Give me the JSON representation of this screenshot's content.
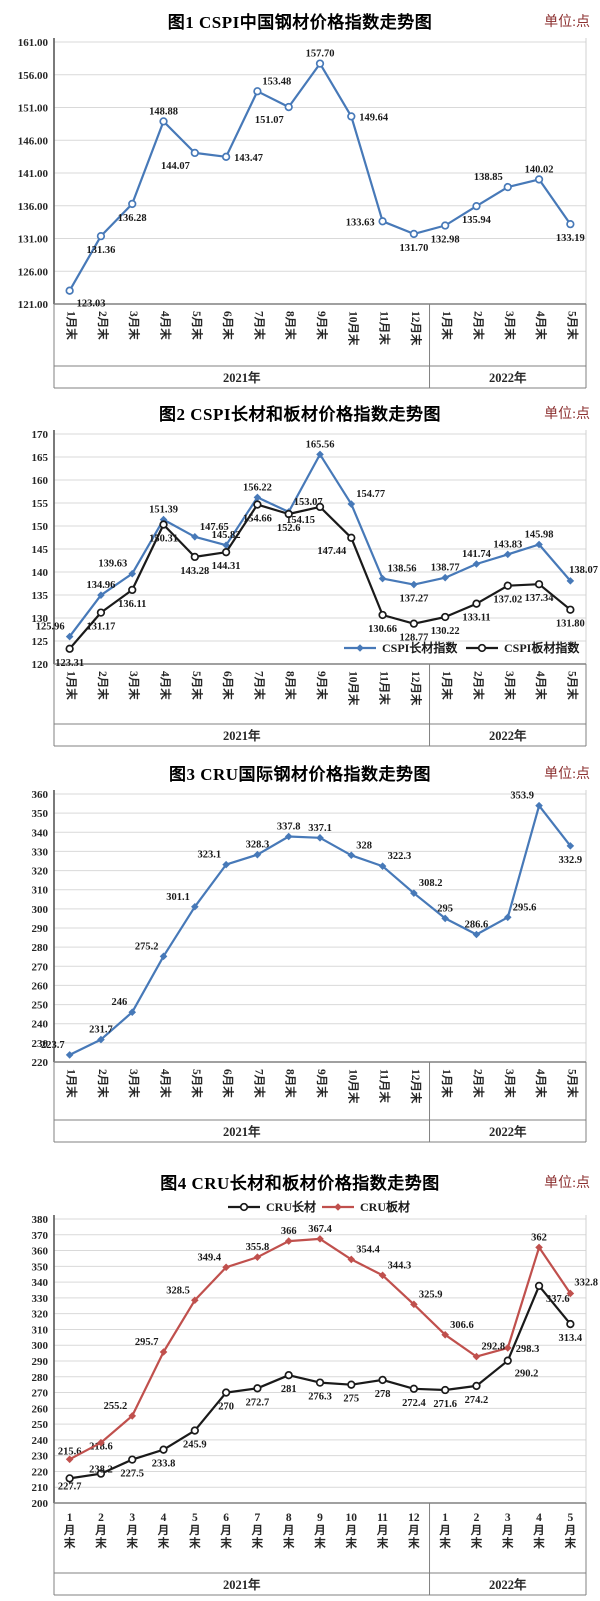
{
  "page": {
    "background": "#ffffff"
  },
  "colors": {
    "cspi_blue": "#4779b8",
    "series_black": "#1a1a1a",
    "cru_red": "#c0504d",
    "gridline": "#d9d9d9",
    "axis": "#808080",
    "tick_text": "#262626",
    "unit_text": "#8c3030"
  },
  "chart_data": [
    {
      "type": "line",
      "title": "图1 CSPI中国钢材价格指数走势图",
      "unit_label": "单位:点",
      "x_categories": [
        "1月末",
        "2月末",
        "3月末",
        "4月末",
        "5月末",
        "6月末",
        "7月末",
        "8月末",
        "9月末",
        "10月末",
        "11月末",
        "12月末",
        "1月末",
        "2月末",
        "3月末",
        "4月末",
        "5月末"
      ],
      "x_group_labels": [
        {
          "label": "2021年",
          "count": 12
        },
        {
          "label": "2022年",
          "count": 5
        }
      ],
      "ylim": [
        121,
        161
      ],
      "ystep": 5,
      "ytick_decimals": 2,
      "grid": true,
      "legend": null,
      "series": [
        {
          "name": null,
          "color": "#4779b8",
          "marker": "open-circle",
          "values": [
            123.03,
            131.36,
            136.28,
            148.88,
            144.07,
            143.47,
            153.48,
            151.07,
            157.7,
            149.64,
            133.63,
            131.7,
            132.98,
            135.94,
            138.85,
            140.02,
            133.19
          ],
          "labels": [
            "123.03",
            "131.36",
            "136.28",
            "148.88",
            "144.07",
            "143.47",
            "153.48",
            "151.07",
            "157.70",
            "149.64",
            "133.63",
            "131.70",
            "132.98",
            "135.94",
            "138.85",
            "140.02",
            "133.19"
          ],
          "label_sides": [
            "br",
            "b",
            "b",
            "a",
            "bl",
            "r",
            "ar",
            "bl",
            "a",
            "r",
            "l",
            "b",
            "b",
            "b",
            "al",
            "a",
            "b"
          ]
        }
      ]
    },
    {
      "type": "line",
      "title": "图2 CSPI长材和板材价格指数走势图",
      "unit_label": "单位:点",
      "x_categories": [
        "1月末",
        "2月末",
        "3月末",
        "4月末",
        "5月末",
        "6月末",
        "7月末",
        "8月末",
        "9月末",
        "10月末",
        "11月末",
        "12月末",
        "1月末",
        "2月末",
        "3月末",
        "4月末",
        "5月末"
      ],
      "x_group_labels": [
        {
          "label": "2021年",
          "count": 12
        },
        {
          "label": "2022年",
          "count": 5
        }
      ],
      "ylim": [
        120,
        170
      ],
      "ystep": 5,
      "ytick_decimals": 0,
      "grid": true,
      "legend": {
        "position": "bottom-right",
        "entries": [
          "CSPI长材指数",
          "CSPI板材指数"
        ]
      },
      "series": [
        {
          "name": "CSPI长材指数",
          "color": "#4779b8",
          "marker": "diamond",
          "values": [
            125.96,
            134.96,
            139.63,
            151.39,
            147.65,
            145.82,
            156.22,
            153.07,
            165.56,
            154.77,
            138.56,
            137.27,
            138.77,
            141.74,
            143.83,
            145.98,
            138.07
          ],
          "labels": [
            "125.96",
            "134.96",
            "139.63",
            "151.39",
            "147.65",
            "145.82",
            "156.22",
            "153.07",
            "165.56",
            "154.77",
            "138.56",
            "137.27",
            "138.77",
            "141.74",
            "143.83",
            "145.98",
            "138.07"
          ],
          "label_sides": [
            "al",
            "a",
            "al",
            "a",
            "ar",
            "a",
            "a",
            "ar",
            "a",
            "ar",
            "ar",
            "b",
            "a",
            "a",
            "a",
            "a",
            "er"
          ]
        },
        {
          "name": "CSPI板材指数",
          "color": "#1a1a1a",
          "marker": "open-circle",
          "values": [
            123.31,
            131.17,
            136.11,
            150.31,
            143.28,
            144.31,
            154.66,
            152.6,
            154.15,
            147.44,
            130.66,
            128.77,
            130.22,
            133.11,
            137.02,
            137.34,
            131.8
          ],
          "labels": [
            "123.31",
            "131.17",
            "136.11",
            "150.31",
            "143.28",
            "144.31",
            "154.66",
            "152.6",
            "154.15",
            "147.44",
            "130.66",
            "128.77",
            "130.22",
            "133.11",
            "137.02",
            "137.34",
            "131.80"
          ],
          "label_sides": [
            "b",
            "b",
            "b",
            "b",
            "b",
            "b",
            "b",
            "b",
            "bl",
            "bl",
            "b",
            "b",
            "b",
            "b",
            "b",
            "b",
            "b"
          ]
        }
      ]
    },
    {
      "type": "line",
      "title": "图3 CRU国际钢材价格指数走势图",
      "unit_label": "单位:点",
      "x_categories": [
        "1月末",
        "2月末",
        "3月末",
        "4月末",
        "5月末",
        "6月末",
        "7月末",
        "8月末",
        "9月末",
        "10月末",
        "11月末",
        "12月末",
        "1月末",
        "2月末",
        "3月末",
        "4月末",
        "5月末"
      ],
      "x_group_labels": [
        {
          "label": "2021年",
          "count": 12
        },
        {
          "label": "2022年",
          "count": 5
        }
      ],
      "ylim": [
        220,
        360
      ],
      "ystep": 10,
      "ytick_decimals": 0,
      "grid": true,
      "legend": null,
      "series": [
        {
          "name": null,
          "color": "#4779b8",
          "marker": "diamond",
          "values": [
            223.7,
            231.7,
            246,
            275.2,
            301.1,
            323.1,
            328.3,
            337.8,
            337.1,
            328,
            322.3,
            308.2,
            295,
            286.6,
            295.6,
            353.9,
            332.9
          ],
          "labels": [
            "223.7",
            "231.7",
            "246",
            "275.2",
            "301.1",
            "323.1",
            "328.3",
            "337.8",
            "337.1",
            "328",
            "322.3",
            "308.2",
            "295",
            "286.6",
            "295.6",
            "353.9",
            "332.9"
          ],
          "label_sides": [
            "al",
            "a",
            "al",
            "al",
            "al",
            "al",
            "a",
            "a",
            "a",
            "ar",
            "ar",
            "ar",
            "a",
            "a",
            "ar",
            "al",
            "b"
          ]
        }
      ]
    },
    {
      "type": "line",
      "title": "图4 CRU长材和板材价格指数走势图",
      "unit_label": "单位:点",
      "x_categories": [
        "1月末",
        "2月末",
        "3月末",
        "4月末",
        "5月末",
        "6月末",
        "7月末",
        "8月末",
        "9月末",
        "10月末",
        "11月末",
        "12月末",
        "1月末",
        "2月末",
        "3月末",
        "4月末",
        "5月末"
      ],
      "x_group_labels": [
        {
          "label": "2021年",
          "count": 12
        },
        {
          "label": "2022年",
          "count": 5
        }
      ],
      "ylim": [
        200,
        380
      ],
      "ystep": 10,
      "ytick_decimals": 0,
      "grid": true,
      "legend": {
        "position": "top-center",
        "entries": [
          "CRU长材",
          "CRU板材"
        ]
      },
      "series": [
        {
          "name": "CRU长材",
          "color": "#1a1a1a",
          "marker": "open-circle",
          "values": [
            215.6,
            218.6,
            227.5,
            233.8,
            245.9,
            270,
            272.7,
            281,
            276.3,
            275,
            278,
            272.4,
            271.6,
            274.2,
            290.2,
            337.6,
            313.4
          ],
          "labels": [
            "215.6",
            "218.6",
            "227.5",
            "233.8",
            "245.9",
            "270",
            "272.7",
            "281",
            "276.3",
            "275",
            "278",
            "272.4",
            "271.6",
            "274.2",
            "290.2",
            "337.6",
            "313.4"
          ],
          "label_sides": [
            "A",
            "A",
            "b",
            "b",
            "b",
            "b",
            "b",
            "b",
            "b",
            "b",
            "b",
            "b",
            "b",
            "b",
            "br",
            "br",
            "b"
          ]
        },
        {
          "name": "CRU板材",
          "color": "#c0504d",
          "marker": "diamond",
          "values": [
            227.7,
            238.2,
            255.2,
            295.7,
            328.5,
            349.4,
            355.8,
            366,
            367.4,
            354.4,
            344.3,
            325.9,
            306.6,
            292.8,
            298.3,
            362,
            332.8
          ],
          "labels": [
            "227.7",
            "238.2",
            "255.2",
            "295.7",
            "328.5",
            "349.4",
            "355.8",
            "366",
            "367.4",
            "354.4",
            "344.3",
            "325.9",
            "306.6",
            "292.8",
            "298.3",
            "362",
            "332.8"
          ],
          "label_sides": [
            "B",
            "B",
            "al",
            "al",
            "al",
            "al",
            "a",
            "a",
            "a",
            "ar",
            "ar",
            "ar",
            "ar",
            "ar",
            "r",
            "a",
            "er"
          ]
        }
      ]
    }
  ]
}
